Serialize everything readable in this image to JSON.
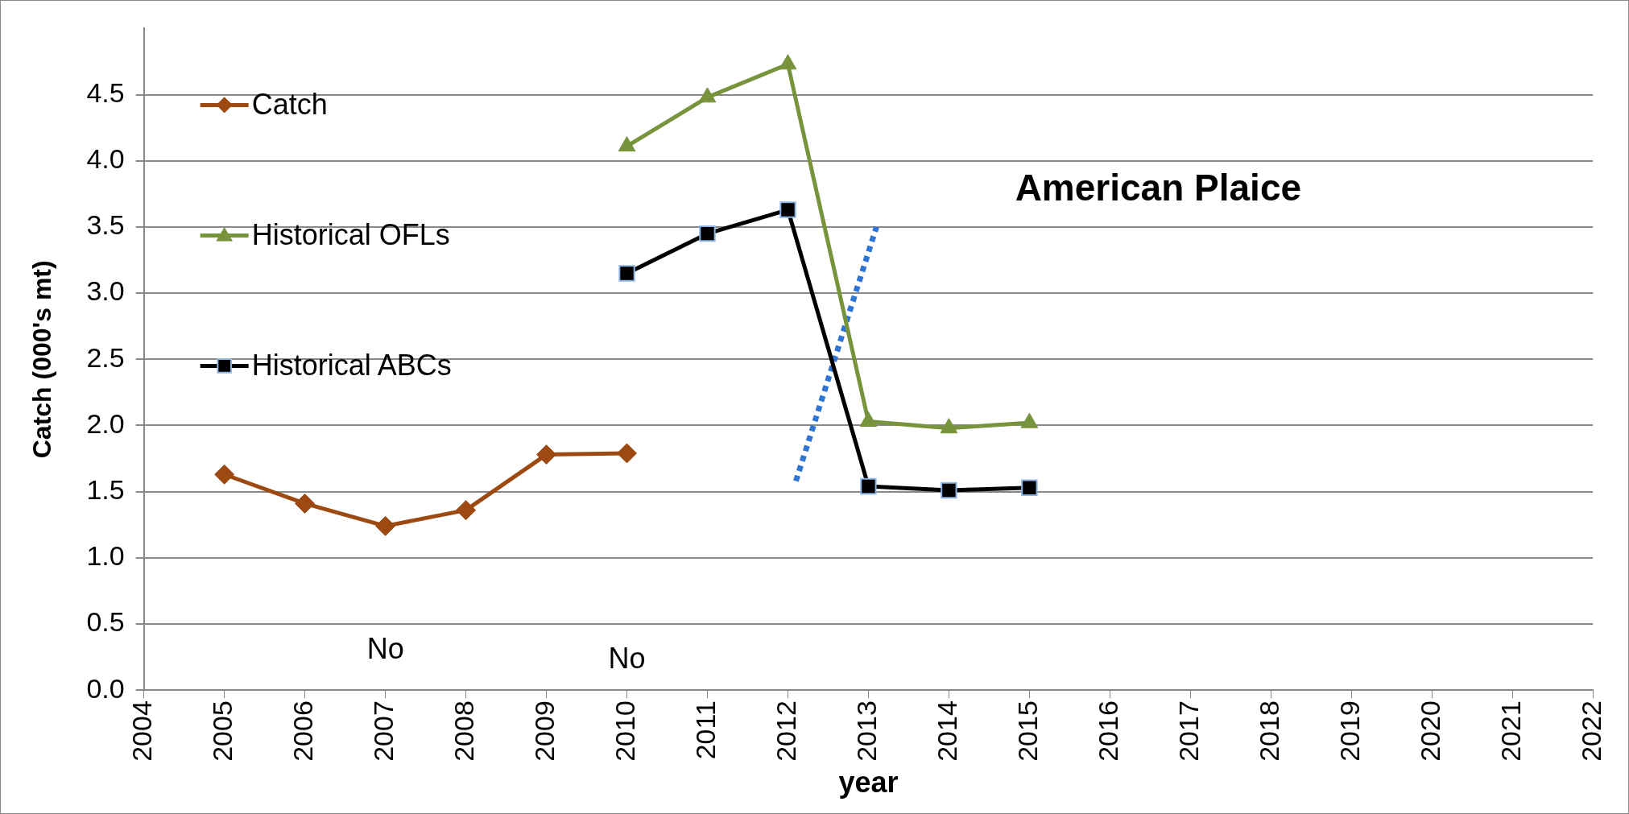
{
  "chart_data": {
    "type": "line",
    "title": "American Plaice",
    "xlabel": "year",
    "ylabel": "Catch (000's mt)",
    "x": [
      2005,
      2006,
      2007,
      2008,
      2009,
      2010,
      2011,
      2012,
      2013,
      2014,
      2015
    ],
    "series": [
      {
        "name": "Catch",
        "color": "#9c4a12",
        "marker": "diamond",
        "values": [
          1.63,
          1.41,
          1.24,
          1.36,
          1.78,
          1.79,
          null,
          null,
          null,
          null,
          null
        ]
      },
      {
        "name": "Historical OFLs",
        "color": "#77933c",
        "marker": "triangle",
        "values": [
          null,
          null,
          null,
          null,
          null,
          4.11,
          4.48,
          4.73,
          2.03,
          1.98,
          2.02
        ]
      },
      {
        "name": "Historical ABCs",
        "color": "#000000",
        "marker": "square",
        "values": [
          null,
          null,
          null,
          null,
          null,
          3.15,
          3.45,
          3.63,
          1.54,
          1.51,
          1.53
        ]
      },
      {
        "type": "line",
        "color": "#2e75d6",
        "marker": "none",
        "line_style": "dotted",
        "x": [
          2012.1,
          2013.1
        ],
        "values": [
          1.58,
          3.5
        ]
      }
    ],
    "annotations": [
      "No",
      "No"
    ],
    "xlim": [
      2004,
      2022
    ],
    "xticks": [
      2004,
      2005,
      2006,
      2007,
      2008,
      2009,
      2010,
      2011,
      2012,
      2013,
      2014,
      2015,
      2016,
      2017,
      2018,
      2019,
      2020,
      2021,
      2022
    ],
    "ylim": [
      0,
      5
    ],
    "yticks": [
      {
        "value": 0,
        "label": "0.0"
      },
      {
        "value": 0.5,
        "label": "0.5"
      },
      {
        "value": 1,
        "label": "1.0"
      },
      {
        "value": 1.5,
        "label": "1.5"
      },
      {
        "value": 2,
        "label": "2.0"
      },
      {
        "value": 2.5,
        "label": "2.5"
      },
      {
        "value": 3,
        "label": "3.0"
      },
      {
        "value": 3.5,
        "label": "3.5"
      },
      {
        "value": 4,
        "label": "4.0"
      },
      {
        "value": 4.5,
        "label": "4.5"
      }
    ],
    "grid": "y",
    "legend": "top left",
    "line_style": "solid"
  }
}
